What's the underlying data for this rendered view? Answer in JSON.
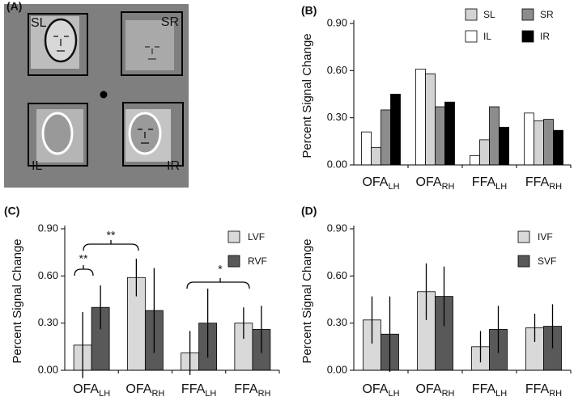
{
  "stimulus_panel": {
    "label": "(A)",
    "labels": [
      "SL",
      "SR",
      "IL",
      "IR"
    ]
  },
  "chart_data": [
    {
      "type": "bar",
      "panel_label": "(B)",
      "y_label": "Percent Signal Change",
      "categories": [
        {
          "name": "OFA",
          "subscript": "LH"
        },
        {
          "name": "OFA",
          "subscript": "RH"
        },
        {
          "name": "FFA",
          "subscript": "LH"
        },
        {
          "name": "FFA",
          "subscript": "RH"
        }
      ],
      "series": [
        {
          "name": "IL",
          "color": "#ffffff",
          "values": [
            0.21,
            0.61,
            0.06,
            0.33
          ]
        },
        {
          "name": "SL",
          "color": "#d3d3d3",
          "values": [
            0.11,
            0.58,
            0.16,
            0.28
          ]
        },
        {
          "name": "SR",
          "color": "#8c8c8c",
          "values": [
            0.35,
            0.37,
            0.37,
            0.29
          ]
        },
        {
          "name": "IR",
          "color": "#000000",
          "values": [
            0.45,
            0.4,
            0.24,
            0.22
          ]
        }
      ],
      "ylim": [
        0,
        0.9
      ],
      "yticks": [
        {
          "value": 0,
          "label": "0.00"
        },
        {
          "value": 0.3,
          "label": "0.30"
        },
        {
          "value": 0.6,
          "label": "0.60"
        },
        {
          "value": 0.9,
          "label": "0.90"
        }
      ],
      "legend": "top-right"
    },
    {
      "type": "bar",
      "panel_label": "(C)",
      "y_label": "Percent Signal Change",
      "categories": [
        {
          "name": "OFA",
          "subscript": "LH"
        },
        {
          "name": "OFA",
          "subscript": "RH"
        },
        {
          "name": "FFA",
          "subscript": "LH"
        },
        {
          "name": "FFA",
          "subscript": "RH"
        }
      ],
      "series": [
        {
          "name": "LVF",
          "color": "#d9d9d9",
          "values": [
            0.16,
            0.59,
            0.11,
            0.3
          ],
          "errors": [
            0.21,
            0.12,
            0.14,
            0.1
          ]
        },
        {
          "name": "RVF",
          "color": "#595959",
          "values": [
            0.4,
            0.38,
            0.3,
            0.26
          ],
          "errors": [
            0.14,
            0.27,
            0.22,
            0.15
          ]
        }
      ],
      "ylim": [
        0,
        0.9
      ],
      "yticks": [
        {
          "value": 0,
          "label": "0.00"
        },
        {
          "value": 0.3,
          "label": "0.30"
        },
        {
          "value": 0.6,
          "label": "0.60"
        },
        {
          "value": 0.9,
          "label": "0.90"
        }
      ],
      "annotations": [
        {
          "text": "**"
        },
        {
          "text": "**"
        },
        {
          "text": "*"
        }
      ],
      "legend": "top-right"
    },
    {
      "type": "bar",
      "panel_label": "(D)",
      "y_label": "Percent Signal Change",
      "categories": [
        {
          "name": "OFA",
          "subscript": "LH"
        },
        {
          "name": "OFA",
          "subscript": "RH"
        },
        {
          "name": "FFA",
          "subscript": "LH"
        },
        {
          "name": "FFA",
          "subscript": "RH"
        }
      ],
      "series": [
        {
          "name": "IVF",
          "color": "#d9d9d9",
          "values": [
            0.32,
            0.5,
            0.15,
            0.27
          ],
          "errors": [
            0.15,
            0.18,
            0.1,
            0.09
          ]
        },
        {
          "name": "SVF",
          "color": "#595959",
          "values": [
            0.23,
            0.47,
            0.26,
            0.28
          ],
          "errors": [
            0.24,
            0.19,
            0.15,
            0.14
          ]
        }
      ],
      "ylim": [
        0,
        0.9
      ],
      "yticks": [
        {
          "value": 0,
          "label": "0.00"
        },
        {
          "value": 0.3,
          "label": "0.30"
        },
        {
          "value": 0.6,
          "label": "0.60"
        },
        {
          "value": 0.9,
          "label": "0.90"
        }
      ],
      "legend": "top-right"
    }
  ]
}
